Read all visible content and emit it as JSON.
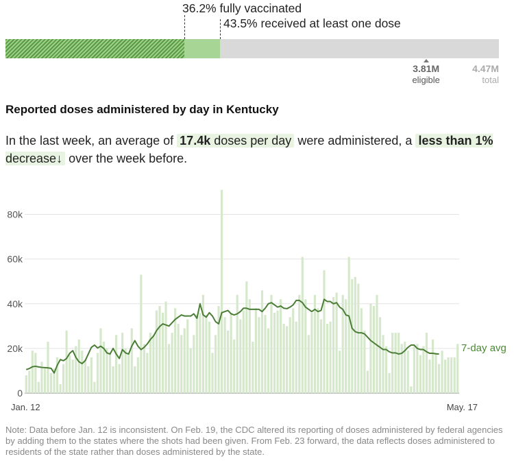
{
  "vaccination": {
    "fully_label": "36.2% fully vaccinated",
    "one_dose_label": "43.5% received at least one dose",
    "fully_pct": 36.2,
    "one_dose_pct": 43.5,
    "eligible_value": "3.81M",
    "eligible_label": "eligible",
    "eligible_number_m": 3.81,
    "total_value": "4.47M",
    "total_label": "total",
    "total_number_m": 4.47,
    "colors": {
      "fully": "#5a9a44",
      "one_dose": "#a7d595",
      "remaining": "#d9d9d9"
    }
  },
  "chart_title": "Reported doses administered by day in Kentucky",
  "summary": {
    "part1": "In the last week, an average of",
    "avg_value": "17.4k",
    "avg_suffix": "doses per day",
    "part2": "were administered, a",
    "change_bold": "less than 1%",
    "change_suffix": "decrease",
    "arrow": "↓",
    "part3": "over the week before."
  },
  "note": "Note: Data before Jan. 12 is inconsistent. On Feb. 19, the CDC altered its reporting of doses administered by federal agencies by adding them to the states where the shots had been given. From Feb. 23 forward, the data reflects doses administered to residents of the state rather than doses administered by the state.",
  "chart_data": {
    "type": "bar",
    "x_start_label": "Jan. 12",
    "x_end_label": "May. 17",
    "x_start": "2021-01-12",
    "x_end": "2021-05-17",
    "ylim": [
      0,
      90000
    ],
    "yticks": [
      0,
      20000,
      40000,
      60000,
      80000
    ],
    "ytick_labels": [
      "0",
      "20k",
      "40k",
      "60k",
      "80k"
    ],
    "grid": true,
    "line_label": "7-day avg",
    "colors": {
      "bars": "#d6e8cc",
      "line": "#4a7d35",
      "label": "#4a8a34"
    },
    "daily_doses": [
      8000,
      10000,
      19000,
      18000,
      5000,
      14000,
      11000,
      23000,
      9000,
      11000,
      16000,
      4000,
      13000,
      28000,
      17000,
      15000,
      21000,
      24000,
      19000,
      15000,
      12000,
      16000,
      5000,
      18000,
      29000,
      23000,
      20000,
      18000,
      12000,
      26000,
      13000,
      27000,
      20000,
      18000,
      29000,
      12000,
      16000,
      53000,
      22000,
      18000,
      27000,
      26000,
      37000,
      39000,
      36000,
      41000,
      22000,
      27000,
      38000,
      31000,
      26000,
      29000,
      33000,
      20000,
      26000,
      35000,
      36000,
      44000,
      35000,
      32000,
      18000,
      26000,
      39000,
      91000,
      34000,
      28000,
      36000,
      24000,
      44000,
      33000,
      37000,
      50000,
      42000,
      23000,
      38000,
      34000,
      46000,
      35000,
      29000,
      44000,
      36000,
      37000,
      42000,
      31000,
      30000,
      34000,
      38000,
      32000,
      44000,
      61000,
      42000,
      26000,
      36000,
      44000,
      38000,
      33000,
      55000,
      31000,
      32000,
      43000,
      45000,
      19000,
      44000,
      42000,
      61000,
      51000,
      52000,
      49000,
      38000,
      28000,
      10000,
      40000,
      39000,
      44000,
      34000,
      26000,
      21000,
      9000,
      27000,
      27000,
      27000,
      22000,
      23000,
      19000,
      3000,
      21000,
      22000,
      17000,
      21000,
      27000,
      15000,
      24000,
      18000,
      13000,
      19000,
      15000,
      16000,
      16000,
      16000,
      22000
    ],
    "avg_7day": [
      10500,
      11000,
      11800,
      12000,
      11700,
      11500,
      11400,
      11300,
      11100,
      9000,
      12500,
      15000,
      14500,
      15500,
      17800,
      19000,
      16000,
      14000,
      13200,
      14500,
      17500,
      20500,
      21500,
      20200,
      21000,
      20000,
      18000,
      17500,
      20000,
      17500,
      15500,
      19500,
      18000,
      17500,
      21000,
      23500,
      21000,
      19500,
      20500,
      22000,
      24000,
      25500,
      28000,
      29800,
      31000,
      30500,
      30000,
      31500,
      33000,
      34000,
      35000,
      34500,
      34500,
      34500,
      35500,
      33500,
      40000,
      35000,
      34000,
      36000,
      34500,
      32000,
      31000,
      36000,
      36500,
      37000,
      35500,
      35000,
      35500,
      36500,
      38000,
      38000,
      37500,
      37500,
      37500,
      37500,
      36500,
      38000,
      40000,
      40500,
      39500,
      38500,
      39000,
      38000,
      37800,
      38500,
      39500,
      41500,
      41500,
      40500,
      38500,
      37500,
      36500,
      37500,
      36500,
      37000,
      42000,
      41000,
      41000,
      40000,
      40500,
      38500,
      37500,
      35000,
      34500,
      29000,
      27500,
      27000,
      27000,
      26500,
      25000,
      23500,
      22500,
      21500,
      20500,
      19500,
      19500,
      18500,
      18000,
      18000,
      17500,
      17800,
      19000,
      20500,
      21500,
      21500,
      20000,
      19500,
      19500,
      18500,
      17800,
      17800,
      17600,
      17500
    ]
  }
}
